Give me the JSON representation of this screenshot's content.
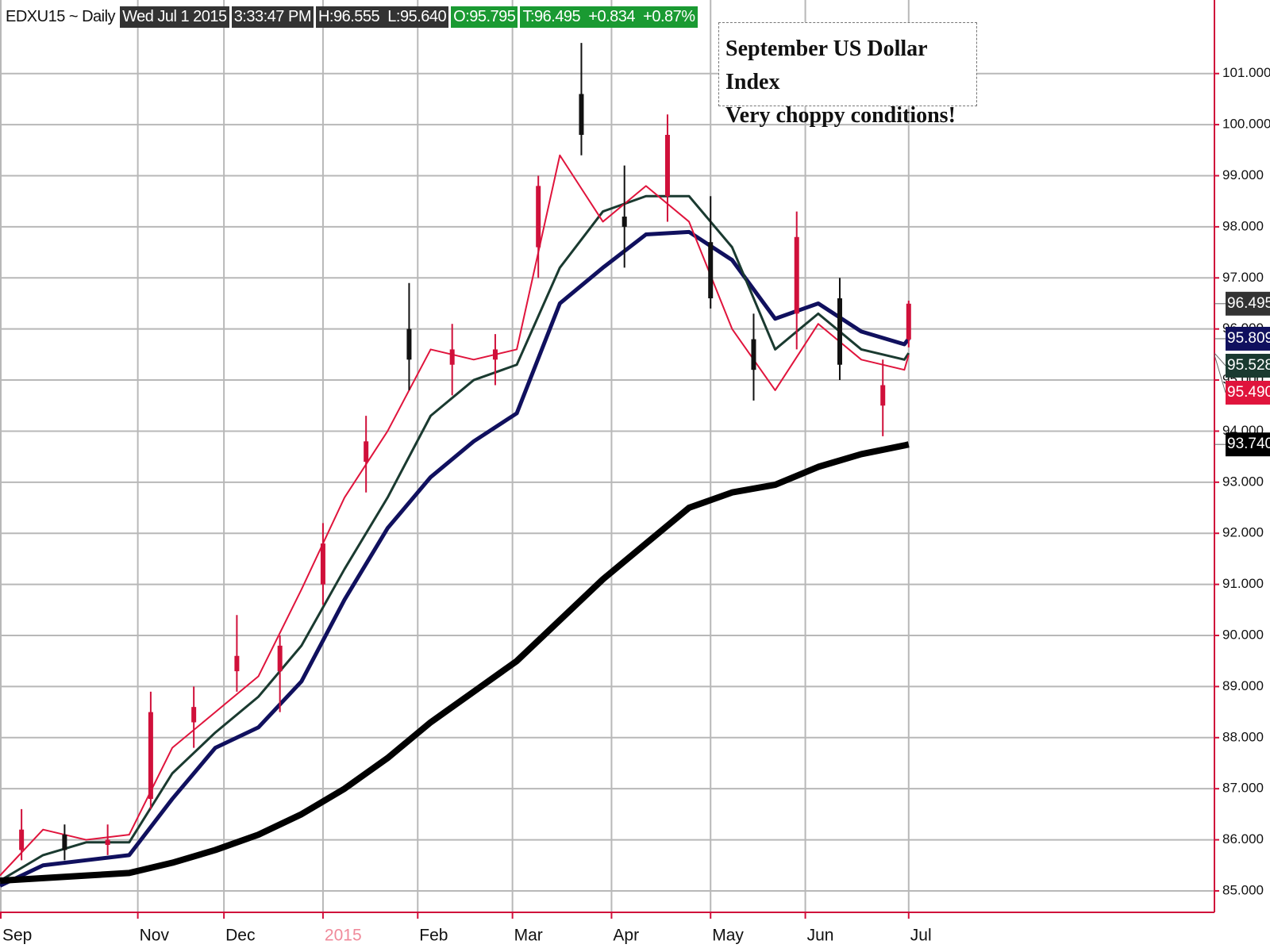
{
  "chart_data": {
    "type": "candlestick",
    "header": [
      "EDXU15 ~ Daily",
      "Wed Jul 1 2015",
      "3:33:47 PM",
      "H:96.555",
      "L:95.640",
      "O:95.795",
      "T:96.495",
      "+0.834",
      "+0.87%"
    ],
    "annotation": [
      "September US Dollar Index",
      "Very choppy conditions!"
    ],
    "xlim": [
      0,
      282
    ],
    "xticks": [
      {
        "value": 0,
        "label": "Sep"
      },
      {
        "value": 32,
        "label": "Nov"
      },
      {
        "value": 52,
        "label": "Dec"
      },
      {
        "value": 75,
        "label": "2015"
      },
      {
        "value": 97,
        "label": "Feb"
      },
      {
        "value": 119,
        "label": "Mar"
      },
      {
        "value": 142,
        "label": "Apr"
      },
      {
        "value": 165,
        "label": "May"
      },
      {
        "value": 187,
        "label": "Jun"
      },
      {
        "value": 211,
        "label": "Jul"
      }
    ],
    "ylim": [
      84.58,
      102.44
    ],
    "yticks": [
      {
        "value": 85,
        "label": "85.000"
      },
      {
        "value": 86,
        "label": "86.000"
      },
      {
        "value": 87,
        "label": "87.000"
      },
      {
        "value": 88,
        "label": "88.000"
      },
      {
        "value": 89,
        "label": "89.000"
      },
      {
        "value": 90,
        "label": "90.000"
      },
      {
        "value": 91,
        "label": "91.000"
      },
      {
        "value": 92,
        "label": "92.000"
      },
      {
        "value": 93,
        "label": "93.000"
      },
      {
        "value": 94,
        "label": "94.000"
      },
      {
        "value": 95,
        "label": "95.000"
      },
      {
        "value": 96,
        "label": "96.000"
      },
      {
        "value": 97,
        "label": "97.000"
      },
      {
        "value": 98,
        "label": "98.000"
      },
      {
        "value": 99,
        "label": "99.000"
      },
      {
        "value": 100,
        "label": "100.000"
      },
      {
        "value": 101,
        "label": "101.000"
      }
    ],
    "grid": true,
    "candles": {
      "x": [
        5,
        15,
        25,
        35,
        45,
        55,
        65,
        75,
        85,
        95,
        105,
        115,
        125,
        135,
        145,
        155,
        165,
        175,
        185,
        195,
        205,
        211
      ],
      "open": [
        85.8,
        86.1,
        85.9,
        86.8,
        88.3,
        89.3,
        89.3,
        91.0,
        93.4,
        96.0,
        95.3,
        95.4,
        97.6,
        100.6,
        98.2,
        98.6,
        97.7,
        95.8,
        96.3,
        96.6,
        94.5,
        95.795
      ],
      "high": [
        86.6,
        86.3,
        86.3,
        88.9,
        89.0,
        90.4,
        90.0,
        92.2,
        94.3,
        96.9,
        96.1,
        95.9,
        99.0,
        101.6,
        99.2,
        100.2,
        98.6,
        96.3,
        98.3,
        97.0,
        95.4,
        96.555
      ],
      "low": [
        85.6,
        85.6,
        85.7,
        86.6,
        87.8,
        88.9,
        88.5,
        90.6,
        92.8,
        94.8,
        94.7,
        94.9,
        97.0,
        99.4,
        97.2,
        98.1,
        96.4,
        94.6,
        95.6,
        95.0,
        93.9,
        95.64
      ],
      "close": [
        86.2,
        85.8,
        86.0,
        88.5,
        88.6,
        89.6,
        89.8,
        91.8,
        93.8,
        95.4,
        95.6,
        95.6,
        98.8,
        99.8,
        98.0,
        99.8,
        96.6,
        95.2,
        97.8,
        95.3,
        94.9,
        96.495
      ],
      "up_color": "#d0103a",
      "down_color": "#111111",
      "color": "#333333",
      "last_label": "96.495"
    },
    "x": [
      0,
      10,
      20,
      30,
      40,
      50,
      60,
      70,
      80,
      90,
      100,
      110,
      120,
      130,
      140,
      150,
      160,
      170,
      180,
      190,
      200,
      210,
      211
    ],
    "series": [
      {
        "color": "#10105e",
        "width": 5,
        "last_label": "95.809",
        "values": [
          85.1,
          85.5,
          85.6,
          85.7,
          86.8,
          87.8,
          88.2,
          89.1,
          90.7,
          92.1,
          93.1,
          93.8,
          94.35,
          96.5,
          97.2,
          97.85,
          97.9,
          97.35,
          96.2,
          96.5,
          95.95,
          95.7,
          95.809
        ]
      },
      {
        "color": "#1a3a30",
        "width": 3,
        "last_label": "95.528",
        "values": [
          85.2,
          85.7,
          85.95,
          85.95,
          87.3,
          88.1,
          88.8,
          89.8,
          91.3,
          92.7,
          94.3,
          95.0,
          95.3,
          97.2,
          98.3,
          98.6,
          98.6,
          97.6,
          95.6,
          96.3,
          95.6,
          95.4,
          95.528
        ]
      },
      {
        "color": "#e0143c",
        "width": 2,
        "last_label": "95.490",
        "values": [
          85.3,
          86.2,
          86.0,
          86.1,
          87.8,
          88.5,
          89.2,
          90.9,
          92.7,
          94.0,
          95.6,
          95.4,
          95.6,
          99.4,
          98.1,
          98.8,
          98.1,
          96.0,
          94.8,
          96.1,
          95.4,
          95.2,
          95.49
        ]
      },
      {
        "color": "#000000",
        "width": 8,
        "last_label": "93.740",
        "values": [
          85.2,
          85.25,
          85.3,
          85.35,
          85.55,
          85.8,
          86.1,
          86.5,
          87.0,
          87.6,
          88.3,
          88.9,
          89.5,
          90.3,
          91.1,
          91.8,
          92.5,
          92.8,
          92.95,
          93.3,
          93.55,
          93.72,
          93.74
        ]
      }
    ]
  }
}
